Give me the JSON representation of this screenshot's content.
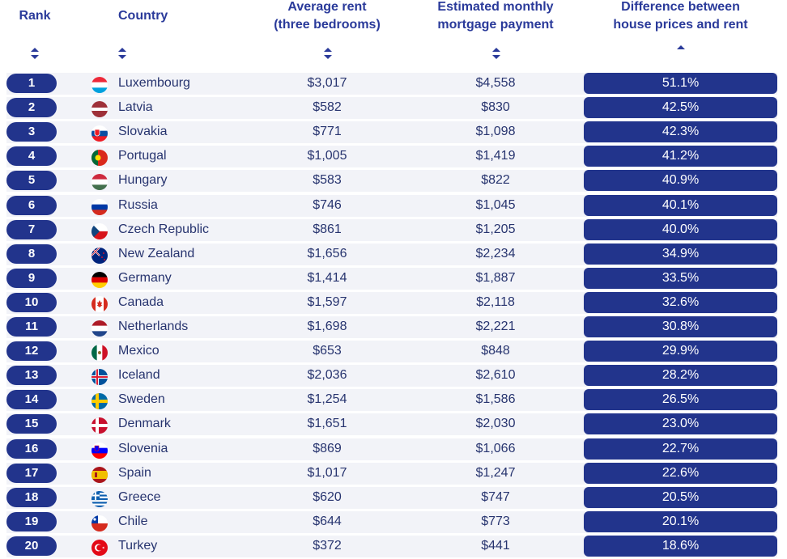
{
  "headers": {
    "rank": "Rank",
    "country": "Country",
    "rent_line1": "Average rent",
    "rent_line2": "(three bedrooms)",
    "mortgage_line1": "Estimated monthly",
    "mortgage_line2": "mortgage payment",
    "diff_line1": "Difference between",
    "diff_line2": "house prices and rent"
  },
  "sort_state": {
    "active_column": "difference",
    "direction": "descending"
  },
  "colors": {
    "accent": "#22348c",
    "header_text": "#2a3a9a",
    "row_bg": "#f2f3f8",
    "body_text": "#27346f"
  },
  "rows": [
    {
      "rank": "1",
      "country": "Luxembourg",
      "flag": "luxembourg-flag-icon",
      "rent": "$3,017",
      "mortgage": "$4,558",
      "difference": "51.1%"
    },
    {
      "rank": "2",
      "country": "Latvia",
      "flag": "latvia-flag-icon",
      "rent": "$582",
      "mortgage": "$830",
      "difference": "42.5%"
    },
    {
      "rank": "3",
      "country": "Slovakia",
      "flag": "slovakia-flag-icon",
      "rent": "$771",
      "mortgage": "$1,098",
      "difference": "42.3%"
    },
    {
      "rank": "4",
      "country": "Portugal",
      "flag": "portugal-flag-icon",
      "rent": "$1,005",
      "mortgage": "$1,419",
      "difference": "41.2%"
    },
    {
      "rank": "5",
      "country": "Hungary",
      "flag": "hungary-flag-icon",
      "rent": "$583",
      "mortgage": "$822",
      "difference": "40.9%"
    },
    {
      "rank": "6",
      "country": "Russia",
      "flag": "russia-flag-icon",
      "rent": "$746",
      "mortgage": "$1,045",
      "difference": "40.1%"
    },
    {
      "rank": "7",
      "country": "Czech Republic",
      "flag": "czech-republic-flag-icon",
      "rent": "$861",
      "mortgage": "$1,205",
      "difference": "40.0%"
    },
    {
      "rank": "8",
      "country": "New Zealand",
      "flag": "new-zealand-flag-icon",
      "rent": "$1,656",
      "mortgage": "$2,234",
      "difference": "34.9%"
    },
    {
      "rank": "9",
      "country": "Germany",
      "flag": "germany-flag-icon",
      "rent": "$1,414",
      "mortgage": "$1,887",
      "difference": "33.5%"
    },
    {
      "rank": "10",
      "country": "Canada",
      "flag": "canada-flag-icon",
      "rent": "$1,597",
      "mortgage": "$2,118",
      "difference": "32.6%"
    },
    {
      "rank": "11",
      "country": "Netherlands",
      "flag": "netherlands-flag-icon",
      "rent": "$1,698",
      "mortgage": "$2,221",
      "difference": "30.8%"
    },
    {
      "rank": "12",
      "country": "Mexico",
      "flag": "mexico-flag-icon",
      "rent": "$653",
      "mortgage": "$848",
      "difference": "29.9%"
    },
    {
      "rank": "13",
      "country": "Iceland",
      "flag": "iceland-flag-icon",
      "rent": "$2,036",
      "mortgage": "$2,610",
      "difference": "28.2%"
    },
    {
      "rank": "14",
      "country": "Sweden",
      "flag": "sweden-flag-icon",
      "rent": "$1,254",
      "mortgage": "$1,586",
      "difference": "26.5%"
    },
    {
      "rank": "15",
      "country": "Denmark",
      "flag": "denmark-flag-icon",
      "rent": "$1,651",
      "mortgage": "$2,030",
      "difference": "23.0%"
    },
    {
      "rank": "16",
      "country": "Slovenia",
      "flag": "slovenia-flag-icon",
      "rent": "$869",
      "mortgage": "$1,066",
      "difference": "22.7%"
    },
    {
      "rank": "17",
      "country": "Spain",
      "flag": "spain-flag-icon",
      "rent": "$1,017",
      "mortgage": "$1,247",
      "difference": "22.6%"
    },
    {
      "rank": "18",
      "country": "Greece",
      "flag": "greece-flag-icon",
      "rent": "$620",
      "mortgage": "$747",
      "difference": "20.5%"
    },
    {
      "rank": "19",
      "country": "Chile",
      "flag": "chile-flag-icon",
      "rent": "$644",
      "mortgage": "$773",
      "difference": "20.1%"
    },
    {
      "rank": "20",
      "country": "Turkey",
      "flag": "turkey-flag-icon",
      "rent": "$372",
      "mortgage": "$441",
      "difference": "18.6%"
    }
  ]
}
